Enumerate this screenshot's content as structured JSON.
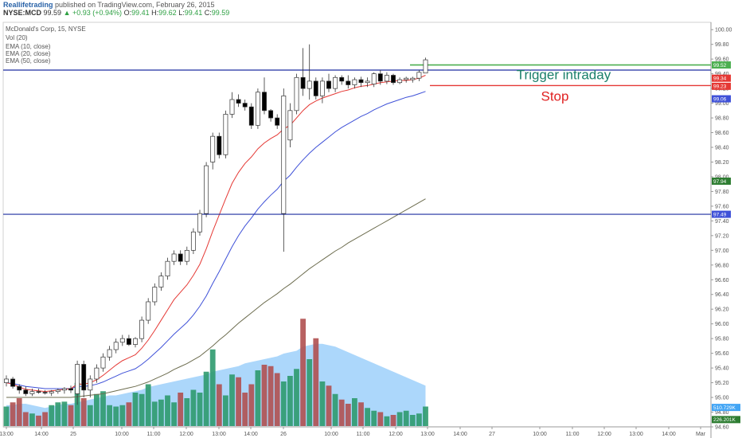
{
  "header": {
    "brand": "Reallifetrading",
    "published": "published on TradingView.com, February 26, 2015",
    "symbol": "NYSE:MCD",
    "last": "99.59",
    "change": "+0.93 (+0.94%)",
    "o_label": "O:",
    "o": "99.41",
    "h_label": "H:",
    "h": "99.62",
    "l_label": "L:",
    "l": "99.41",
    "c_label": "C:",
    "c": "99.59"
  },
  "legend": {
    "title": "McDonald's Corp, 15, NYSE",
    "vol": "Vol (20)",
    "ema10": "EMA (10, close)",
    "ema20": "EMA (20, close)",
    "ema50": "EMA (50, close)"
  },
  "colors": {
    "up": "#ffffff",
    "down": "#000000",
    "wick": "#333333",
    "ema10": "#e53935",
    "ema20": "#3f51d8",
    "ema50": "#6d6d4f",
    "vol_up": "#2e9a6e",
    "vol_down": "#b05050",
    "vol_ma": "#90caf9",
    "trigger": "#1a7f6a",
    "stop": "#e02020",
    "hline": "#1f2fa0",
    "greenline": "#4caf50"
  },
  "chart_data": {
    "type": "candlestick",
    "title": "McDonald's Corp, 15, NYSE",
    "ylim": [
      94.6,
      100.1
    ],
    "y_ticks": [
      "100.00",
      "99.80",
      "99.60",
      "99.40",
      "99.20",
      "99.00",
      "98.80",
      "98.60",
      "98.40",
      "98.20",
      "98.00",
      "97.80",
      "97.60",
      "97.40",
      "97.20",
      "97.00",
      "96.80",
      "96.60",
      "96.40",
      "96.20",
      "96.00",
      "95.80",
      "95.60",
      "95.40",
      "95.20",
      "95.00",
      "94.80",
      "94.60"
    ],
    "x_ticks": [
      "13:00",
      "14:00",
      "25",
      "10:00",
      "11:00",
      "12:00",
      "13:00",
      "14:00",
      "26",
      "10:00",
      "11:00",
      "12:00",
      "13:00",
      "14:00",
      "27",
      "10:00",
      "11:00",
      "12:00",
      "13:00",
      "14:00",
      "Mar"
    ],
    "price_badges": [
      {
        "label": "99.52",
        "value": 99.52,
        "color": "#4caf50"
      },
      {
        "label": "99.34",
        "value": 99.34,
        "color": "#e53935"
      },
      {
        "label": "99.23",
        "value": 99.23,
        "color": "#e53935"
      },
      {
        "label": "99.06",
        "value": 99.06,
        "color": "#3f51d8"
      },
      {
        "label": "97.94",
        "value": 97.94,
        "color": "#2e7d32"
      },
      {
        "label": "97.49",
        "value": 97.49,
        "color": "#3f51d8"
      },
      {
        "label": "510.729K",
        "value": null,
        "color": "#42a5f5",
        "pane": "volume",
        "pos": 0.55
      },
      {
        "label": "226.201K",
        "value": null,
        "color": "#2e7d32",
        "pane": "volume",
        "pos": 0.82
      }
    ],
    "candles": [
      [
        95.2,
        95.3,
        95.15,
        95.25
      ],
      [
        95.25,
        95.28,
        95.12,
        95.15
      ],
      [
        95.15,
        95.18,
        95.05,
        95.1
      ],
      [
        95.1,
        95.15,
        95.02,
        95.05
      ],
      [
        95.05,
        95.12,
        95.02,
        95.08
      ],
      [
        95.08,
        95.12,
        95.05,
        95.07
      ],
      [
        95.07,
        95.1,
        95.04,
        95.06
      ],
      [
        95.06,
        95.1,
        95.02,
        95.08
      ],
      [
        95.08,
        95.12,
        95.05,
        95.1
      ],
      [
        95.1,
        95.14,
        95.05,
        95.12
      ],
      [
        95.12,
        95.16,
        95.06,
        95.1
      ],
      [
        95.05,
        95.5,
        94.9,
        95.45
      ],
      [
        95.45,
        95.5,
        95.0,
        95.1
      ],
      [
        95.1,
        95.3,
        95.0,
        95.25
      ],
      [
        95.25,
        95.45,
        95.2,
        95.4
      ],
      [
        95.4,
        95.6,
        95.35,
        95.55
      ],
      [
        95.55,
        95.7,
        95.5,
        95.65
      ],
      [
        95.65,
        95.8,
        95.6,
        95.75
      ],
      [
        95.75,
        95.85,
        95.7,
        95.8
      ],
      [
        95.8,
        95.85,
        95.7,
        95.72
      ],
      [
        95.72,
        95.82,
        95.68,
        95.8
      ],
      [
        95.8,
        96.1,
        95.75,
        96.05
      ],
      [
        96.05,
        96.35,
        96.0,
        96.3
      ],
      [
        96.3,
        96.55,
        96.25,
        96.5
      ],
      [
        96.5,
        96.7,
        96.45,
        96.65
      ],
      [
        96.65,
        96.9,
        96.6,
        96.85
      ],
      [
        96.85,
        97.0,
        96.8,
        96.95
      ],
      [
        96.95,
        97.0,
        96.8,
        96.85
      ],
      [
        96.85,
        97.05,
        96.8,
        97.0
      ],
      [
        97.0,
        97.3,
        96.95,
        97.25
      ],
      [
        97.25,
        97.55,
        97.2,
        97.5
      ],
      [
        97.5,
        98.2,
        97.45,
        98.15
      ],
      [
        98.2,
        98.6,
        98.1,
        98.55
      ],
      [
        98.55,
        98.6,
        98.25,
        98.3
      ],
      [
        98.3,
        98.9,
        98.25,
        98.85
      ],
      [
        98.85,
        99.15,
        98.8,
        99.05
      ],
      [
        99.05,
        99.12,
        98.95,
        99.0
      ],
      [
        99.0,
        99.05,
        98.9,
        98.95
      ],
      [
        98.95,
        99.0,
        98.65,
        98.7
      ],
      [
        98.7,
        99.2,
        98.65,
        99.15
      ],
      [
        99.15,
        99.35,
        98.85,
        98.9
      ],
      [
        98.9,
        98.92,
        98.75,
        98.8
      ],
      [
        98.8,
        98.85,
        98.65,
        98.7
      ],
      [
        97.5,
        99.2,
        96.98,
        99.1
      ],
      [
        98.5,
        99.0,
        98.4,
        98.9
      ],
      [
        98.9,
        99.4,
        98.85,
        99.35
      ],
      [
        99.35,
        99.75,
        99.1,
        99.2
      ],
      [
        99.2,
        99.8,
        99.05,
        99.3
      ],
      [
        99.3,
        99.35,
        99.05,
        99.1
      ],
      [
        99.1,
        99.35,
        99.0,
        99.3
      ],
      [
        99.3,
        99.4,
        99.15,
        99.2
      ],
      [
        99.2,
        99.38,
        99.15,
        99.35
      ],
      [
        99.35,
        99.38,
        99.25,
        99.3
      ],
      [
        99.3,
        99.38,
        99.2,
        99.25
      ],
      [
        99.25,
        99.35,
        99.2,
        99.32
      ],
      [
        99.32,
        99.36,
        99.22,
        99.28
      ],
      [
        99.28,
        99.35,
        99.22,
        99.3
      ],
      [
        99.26,
        99.42,
        99.22,
        99.4
      ],
      [
        99.4,
        99.45,
        99.25,
        99.3
      ],
      [
        99.3,
        99.42,
        99.26,
        99.38
      ],
      [
        99.38,
        99.4,
        99.25,
        99.28
      ],
      [
        99.28,
        99.35,
        99.26,
        99.32
      ],
      [
        99.32,
        99.36,
        99.28,
        99.34
      ],
      [
        99.32,
        99.36,
        99.28,
        99.34
      ],
      [
        99.34,
        99.45,
        99.3,
        99.42
      ],
      [
        99.41,
        99.62,
        99.41,
        99.59
      ]
    ],
    "ema10": [
      95.2,
      95.18,
      95.14,
      95.11,
      95.1,
      95.09,
      95.08,
      95.09,
      95.1,
      95.11,
      95.12,
      95.18,
      95.18,
      95.2,
      95.24,
      95.3,
      95.37,
      95.44,
      95.5,
      95.54,
      95.58,
      95.67,
      95.78,
      95.91,
      96.05,
      96.19,
      96.33,
      96.43,
      96.53,
      96.66,
      96.81,
      97.02,
      97.26,
      97.48,
      97.7,
      97.91,
      98.06,
      98.18,
      98.27,
      98.38,
      98.46,
      98.52,
      98.57,
      98.65,
      98.7,
      98.8,
      98.9,
      98.98,
      99.03,
      99.07,
      99.1,
      99.13,
      99.16,
      99.18,
      99.21,
      99.23,
      99.24,
      99.26,
      99.28,
      99.29,
      99.3,
      99.31,
      99.31,
      99.32,
      99.34,
      99.38
    ],
    "ema20": [
      95.2,
      95.19,
      95.17,
      95.15,
      95.14,
      95.13,
      95.12,
      95.12,
      95.12,
      95.12,
      95.12,
      95.15,
      95.15,
      95.16,
      95.18,
      95.21,
      95.25,
      95.29,
      95.33,
      95.36,
      95.39,
      95.45,
      95.52,
      95.6,
      95.68,
      95.77,
      95.86,
      95.94,
      96.02,
      96.12,
      96.24,
      96.38,
      96.55,
      96.71,
      96.88,
      97.05,
      97.2,
      97.33,
      97.44,
      97.56,
      97.66,
      97.75,
      97.83,
      97.94,
      98.02,
      98.13,
      98.23,
      98.32,
      98.4,
      98.47,
      98.54,
      98.61,
      98.67,
      98.72,
      98.77,
      98.82,
      98.86,
      98.91,
      98.95,
      98.99,
      99.02,
      99.05,
      99.08,
      99.1,
      99.13,
      99.16
    ],
    "ema50": [
      95.0,
      95.0,
      95.0,
      95.0,
      95.0,
      95.0,
      95.0,
      95.0,
      95.0,
      95.0,
      95.0,
      95.01,
      95.02,
      95.03,
      95.04,
      95.05,
      95.07,
      95.09,
      95.11,
      95.13,
      95.15,
      95.18,
      95.21,
      95.25,
      95.29,
      95.33,
      95.38,
      95.42,
      95.46,
      95.51,
      95.56,
      95.63,
      95.7,
      95.78,
      95.85,
      95.93,
      96.01,
      96.08,
      96.15,
      96.22,
      96.29,
      96.35,
      96.41,
      96.48,
      96.54,
      96.61,
      96.68,
      96.75,
      96.81,
      96.87,
      96.93,
      96.99,
      97.04,
      97.1,
      97.15,
      97.2,
      97.25,
      97.3,
      97.35,
      97.4,
      97.45,
      97.5,
      97.55,
      97.6,
      97.65,
      97.7
    ],
    "volume": [
      28,
      34,
      40,
      20,
      18,
      15,
      20,
      30,
      34,
      35,
      30,
      62,
      40,
      30,
      46,
      50,
      30,
      28,
      30,
      34,
      48,
      46,
      60,
      35,
      38,
      44,
      34,
      48,
      40,
      52,
      48,
      78,
      110,
      60,
      44,
      74,
      70,
      48,
      60,
      80,
      88,
      86,
      76,
      64,
      72,
      82,
      154,
      96,
      126,
      64,
      58,
      46,
      38,
      32,
      40,
      34,
      26,
      22,
      20,
      14,
      16,
      20,
      22,
      16,
      18,
      28
    ],
    "vol_ma": [
      30,
      30,
      32,
      32,
      30,
      28,
      26,
      28,
      30,
      32,
      32,
      34,
      36,
      38,
      40,
      42,
      44,
      44,
      46,
      48,
      50,
      52,
      56,
      58,
      60,
      62,
      64,
      66,
      68,
      70,
      72,
      74,
      78,
      80,
      82,
      84,
      86,
      90,
      92,
      94,
      96,
      98,
      100,
      104,
      106,
      108,
      114,
      116,
      118,
      118,
      116,
      114,
      110,
      106,
      102,
      98,
      94,
      90,
      86,
      82,
      78,
      74,
      70,
      66,
      62,
      58
    ],
    "hlines": [
      {
        "value": 99.45,
        "color": "#1f2fa0"
      },
      {
        "value": 97.49,
        "color": "#1f2fa0"
      }
    ],
    "annotations": [
      {
        "text": "Trigger intraday",
        "value": 99.39,
        "color": "#1a7f6a"
      },
      {
        "text": "Stop",
        "value": 99.1,
        "color": "#e02020"
      }
    ],
    "trigger_line": {
      "value": 99.52,
      "color": "#4caf50"
    },
    "stop_line": {
      "value": 99.24,
      "color": "#e53935"
    }
  }
}
